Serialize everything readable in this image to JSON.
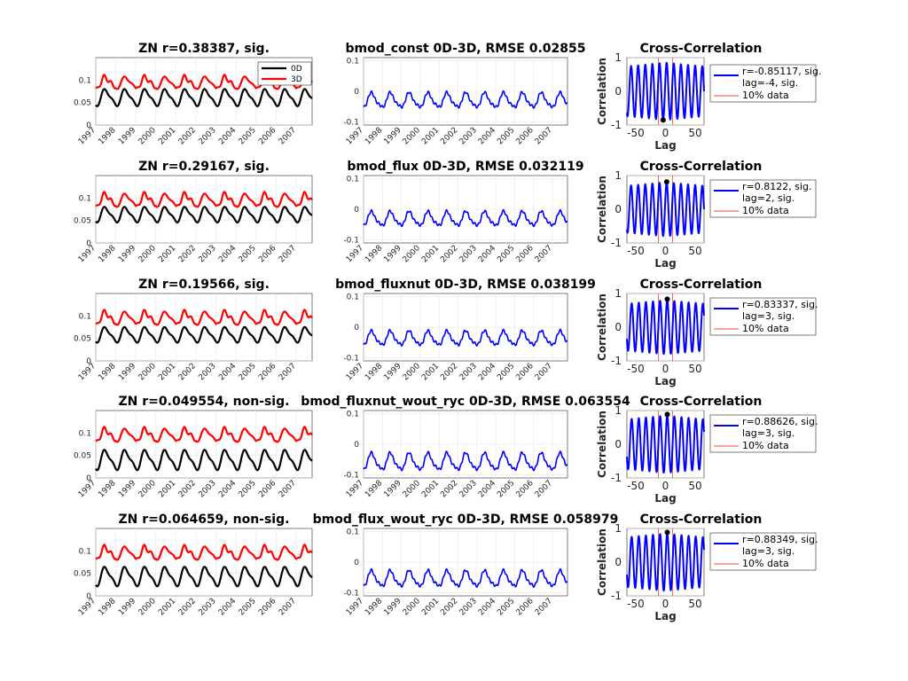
{
  "chart_data": {
    "type": "line",
    "years": [
      "1997",
      "1998",
      "1999",
      "2000",
      "2001",
      "2002",
      "2003",
      "2004",
      "2005",
      "2006",
      "2007"
    ],
    "ts_yticks": [
      "0",
      "0.05",
      "0.1"
    ],
    "diff_yticks": [
      "-0.1",
      "0",
      "0.1"
    ],
    "cc_yticks": [
      "-1",
      "0",
      "1"
    ],
    "cc_xticks": [
      "-50",
      "0",
      "50"
    ],
    "cc_title": "Cross-Correlation",
    "cc_ylabel": "Correlation",
    "cc_xlabel": "Lag",
    "series_colors": {
      "0D": "#000000",
      "3D": "#ff0000",
      "diff": "#0000ff",
      "cc": "#0000ff",
      "band": "#ff0000"
    },
    "legend_ts": [
      "0D",
      "3D"
    ],
    "legend_band": "10% data",
    "rows": [
      {
        "ts_title": "ZN r=0.38387, sig.",
        "diff_title": "bmod_const 0D-3D, RMSE 0.02855",
        "cc_legend_lines": [
          "r=-0.85117, sig.",
          "lag=-4, sig."
        ],
        "ts_3d": {
          "mean": 0.094,
          "amp": 0.016
        },
        "ts_0d": {
          "mean": 0.061,
          "amp": 0.022
        },
        "diff": {
          "mean": -0.03,
          "amp": 0.028
        },
        "cc": {
          "peak_lag": -4,
          "peak_r": -0.85117,
          "amp": 0.85,
          "decay": 0.1
        },
        "ts_ylim": [
          0,
          0.15
        ],
        "diff_ylim": [
          -0.11,
          0.11
        ],
        "cc_ylim": [
          -1,
          1
        ],
        "cc_xlim": [
          -65,
          65
        ]
      },
      {
        "ts_title": "ZN r=0.29167, sig.",
        "diff_title": "bmod_flux 0D-3D, RMSE 0.032119",
        "cc_legend_lines": [
          "r=0.8122, sig.",
          "lag=2, sig."
        ],
        "ts_3d": {
          "mean": 0.095,
          "amp": 0.017
        },
        "ts_0d": {
          "mean": 0.063,
          "amp": 0.02
        },
        "diff": {
          "mean": -0.032,
          "amp": 0.027
        },
        "cc": {
          "peak_lag": 2,
          "peak_r": 0.8122,
          "amp": 0.8,
          "decay": 0.1
        },
        "ts_ylim": [
          0,
          0.15
        ],
        "diff_ylim": [
          -0.11,
          0.11
        ],
        "cc_ylim": [
          -1,
          1
        ],
        "cc_xlim": [
          -65,
          65
        ]
      },
      {
        "ts_title": "ZN r=0.19566, sig.",
        "diff_title": "bmod_fluxnut 0D-3D, RMSE 0.038199",
        "cc_legend_lines": [
          "r=0.83337, sig.",
          "lag=3, sig."
        ],
        "ts_3d": {
          "mean": 0.095,
          "amp": 0.017
        },
        "ts_0d": {
          "mean": 0.058,
          "amp": 0.02
        },
        "diff": {
          "mean": -0.037,
          "amp": 0.027
        },
        "cc": {
          "peak_lag": 3,
          "peak_r": 0.83337,
          "amp": 0.8,
          "decay": 0.1
        },
        "ts_ylim": [
          0,
          0.15
        ],
        "diff_ylim": [
          -0.11,
          0.11
        ],
        "cc_ylim": [
          -1,
          1
        ],
        "cc_xlim": [
          -65,
          65
        ]
      },
      {
        "ts_title": "ZN r=0.049554, non-sig.",
        "diff_title": "bmod_fluxnut_wout_ryc 0D-3D, RMSE 0.063554",
        "cc_legend_lines": [
          "r=0.88626, sig.",
          "lag=3, sig."
        ],
        "ts_3d": {
          "mean": 0.095,
          "amp": 0.017
        },
        "ts_0d": {
          "mean": 0.04,
          "amp": 0.026
        },
        "diff": {
          "mean": -0.058,
          "amp": 0.032
        },
        "cc": {
          "peak_lag": 3,
          "peak_r": 0.88626,
          "amp": 0.85,
          "decay": 0.1
        },
        "ts_ylim": [
          0,
          0.15
        ],
        "diff_ylim": [
          -0.11,
          0.11
        ],
        "cc_ylim": [
          -1,
          1
        ],
        "cc_xlim": [
          -65,
          65
        ]
      },
      {
        "ts_title": "ZN r=0.064659, non-sig.",
        "diff_title": "bmod_flux_wout_ryc 0D-3D, RMSE 0.058979",
        "cc_legend_lines": [
          "r=0.88349, sig.",
          "lag=3, sig."
        ],
        "ts_3d": {
          "mean": 0.095,
          "amp": 0.017
        },
        "ts_0d": {
          "mean": 0.043,
          "amp": 0.025
        },
        "diff": {
          "mean": -0.055,
          "amp": 0.03
        },
        "cc": {
          "peak_lag": 3,
          "peak_r": 0.88349,
          "amp": 0.85,
          "decay": 0.1
        },
        "ts_ylim": [
          0,
          0.15
        ],
        "diff_ylim": [
          -0.11,
          0.11
        ],
        "cc_ylim": [
          -1,
          1
        ],
        "cc_xlim": [
          -65,
          65
        ]
      }
    ]
  }
}
